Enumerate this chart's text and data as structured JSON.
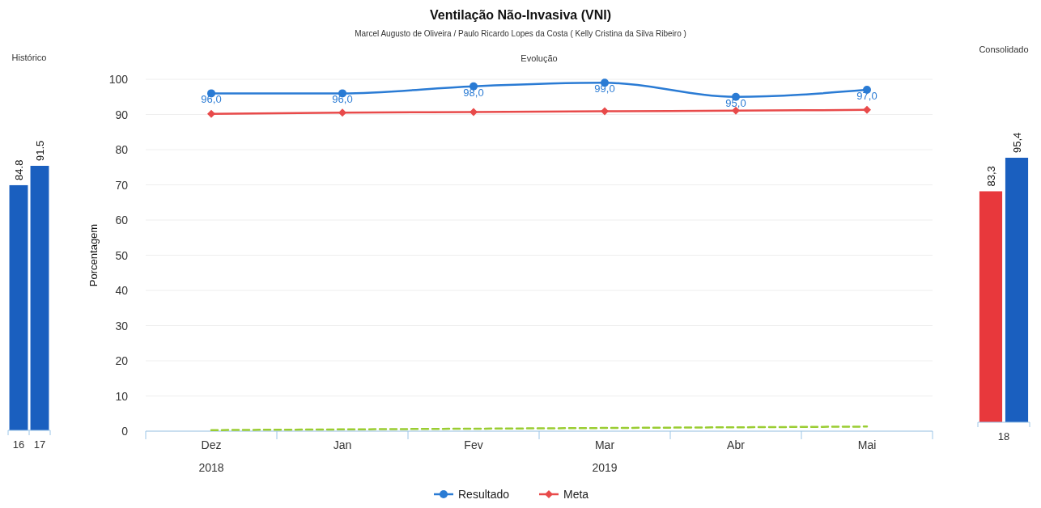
{
  "chart_data": [
    {
      "type": "bar",
      "title": "Histórico",
      "categories": [
        "16",
        "17"
      ],
      "tick_labels": "x",
      "series": [
        {
          "color": "#1a5fbf",
          "values": [
            84.8,
            91.5
          ],
          "value_labels": [
            "84.8",
            "91.5"
          ]
        }
      ]
    },
    {
      "type": "line",
      "title": "Ventilação Não-Invasiva (VNI)",
      "subtitle": "Marcel Augusto de Oliveira / Paulo Ricardo Lopes da Costa ( Kelly Cristina da Silva Ribeiro )",
      "xlabel": "Evolução",
      "ylabel": "Porcentagem",
      "categories": [
        "Dez",
        "Jan",
        "Fev",
        "Mar",
        "Abr",
        "Mai"
      ],
      "ylim": [
        0,
        100
      ],
      "yticks": [
        0,
        10,
        20,
        30,
        40,
        50,
        60,
        70,
        80,
        90,
        100
      ],
      "grid": "y",
      "legend": "bottom",
      "annotations": [
        "2018",
        "2019"
      ],
      "series": [
        {
          "name": "Resultado",
          "color": "#2a7bd4",
          "marker": "circle",
          "line_style": "solid",
          "values": [
            96,
            96,
            98,
            99,
            95,
            97
          ],
          "value_labels": [
            "96,0",
            "96,0",
            "98,0",
            "99,0",
            "95,0",
            "97,0"
          ]
        },
        {
          "name": "Meta",
          "color": "#e84a4a",
          "marker": "diamond",
          "line_style": "solid",
          "values": [
            90.2,
            90.5,
            90.7,
            90.9,
            91.1,
            91.3
          ]
        },
        {
          "color": "#9acd32",
          "marker": "none",
          "line_style": "dashed",
          "values": [
            0.3,
            0.5,
            0.7,
            0.9,
            1.1,
            1.3
          ]
        }
      ]
    },
    {
      "type": "bar",
      "title": "Consolidado",
      "categories": [
        "18"
      ],
      "tick_labels": "x",
      "series": [
        {
          "color": "#e8383c",
          "values": [
            83.3
          ],
          "value_labels": [
            "83,3"
          ]
        },
        {
          "color": "#1a5fbf",
          "values": [
            95.4
          ],
          "value_labels": [
            "95,4"
          ]
        }
      ]
    }
  ]
}
